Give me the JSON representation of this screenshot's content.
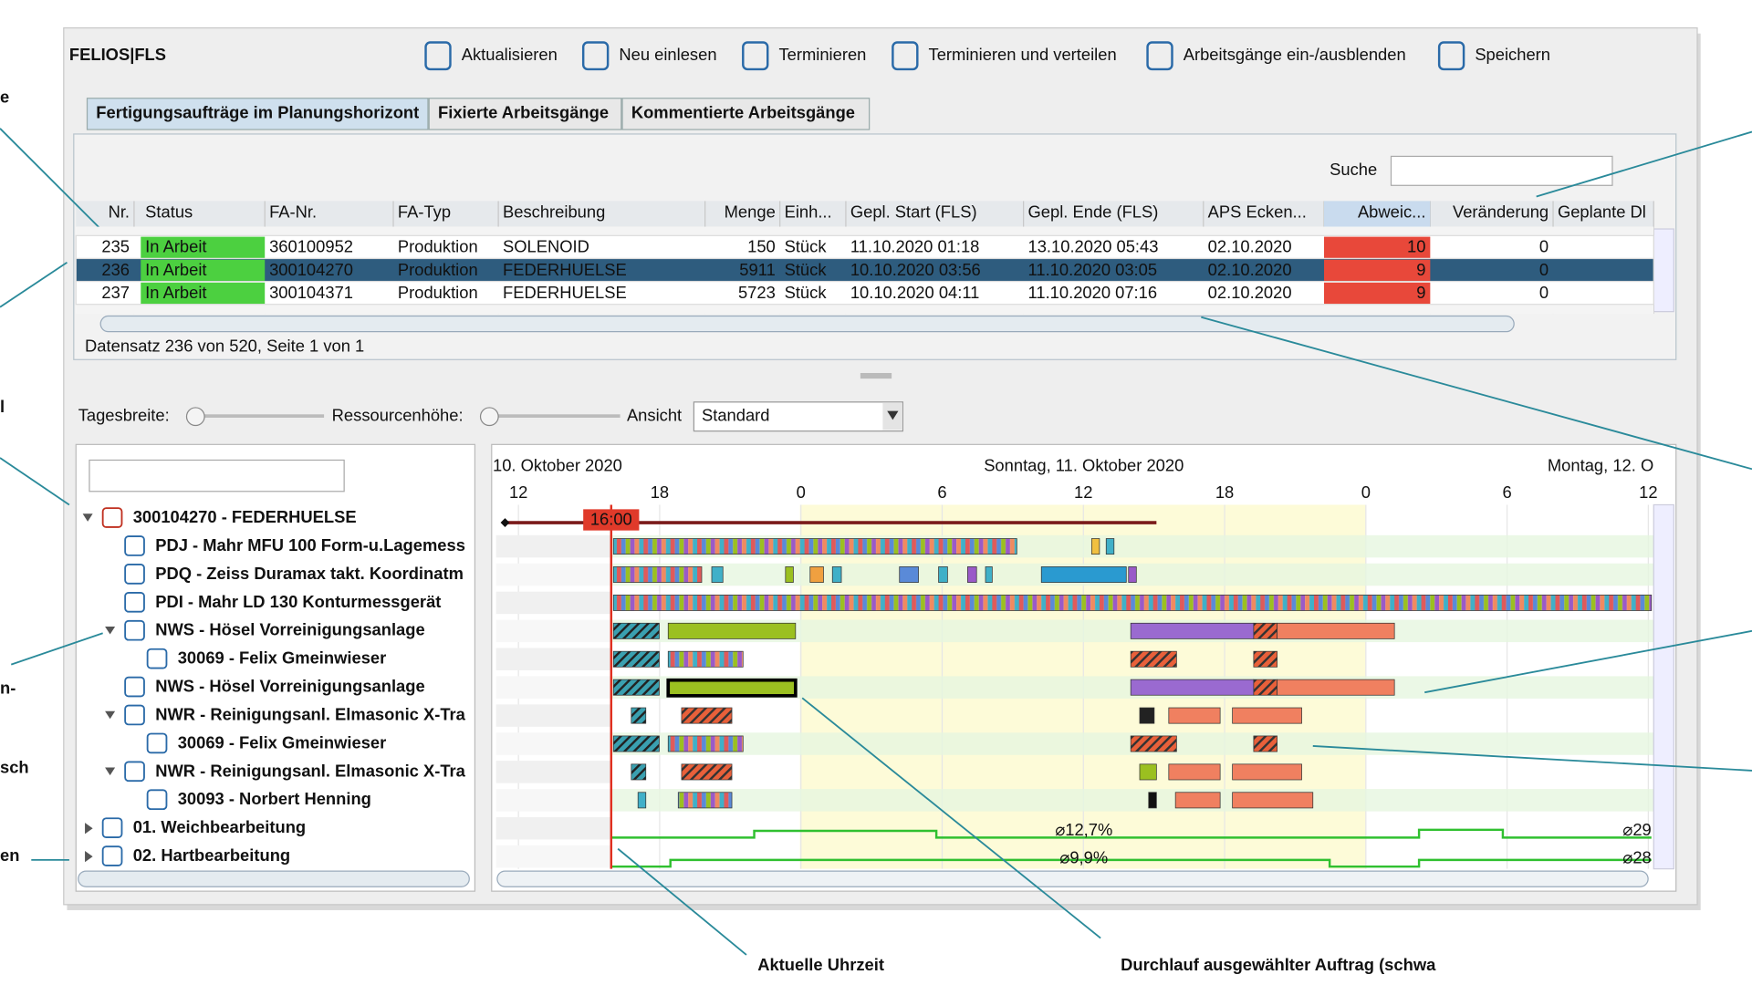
{
  "header": {
    "app_title": "FELIOS|FLS",
    "toolbar": [
      "Aktualisieren",
      "Neu einlesen",
      "Terminieren",
      "Terminieren und verteilen",
      "Arbeitsgänge ein-/ausblenden",
      "Speichern"
    ]
  },
  "tabs": [
    "Fertigungsaufträge im Planungshorizont",
    "Fixierte Arbeitsgänge",
    "Kommentierte Arbeitsgänge"
  ],
  "table": {
    "search_label": "Suche",
    "columns": [
      "Nr.",
      "Status",
      "FA-Nr.",
      "FA-Typ",
      "Beschreibung",
      "Menge",
      "Einh...",
      "Gepl. Start (FLS)",
      "Gepl. Ende (FLS)",
      "APS Ecken...",
      "Abweic...",
      "Veränderung",
      "Geplante Dl"
    ],
    "rows": [
      [
        "235",
        "In Arbeit",
        "360100952",
        "Produktion",
        "SOLENOID",
        "150",
        "Stück",
        "11.10.2020 01:18",
        "13.10.2020 05:43",
        "02.10.2020",
        "10",
        "0"
      ],
      [
        "236",
        "In Arbeit",
        "300104270",
        "Produktion",
        "FEDERHUELSE",
        "5911",
        "Stück",
        "10.10.2020 03:56",
        "11.10.2020 03:05",
        "02.10.2020",
        "9",
        "0"
      ],
      [
        "237",
        "In Arbeit",
        "300104371",
        "Produktion",
        "FEDERHUELSE",
        "5723",
        "Stück",
        "10.10.2020 04:11",
        "11.10.2020 07:16",
        "02.10.2020",
        "9",
        "0"
      ]
    ],
    "status": "Datensatz 236 von 520, Seite 1 von 1"
  },
  "gantt_controls": {
    "day_width_label": "Tagesbreite:",
    "resource_height_label": "Ressourcenhöhe:",
    "view_label": "Ansicht",
    "view_value": "Standard"
  },
  "timeline": {
    "dates": [
      "10. Oktober 2020",
      "Sonntag, 11. Oktober 2020",
      "Montag, 12. O"
    ],
    "hours": [
      "12",
      "18",
      "0",
      "6",
      "12",
      "18",
      "0",
      "6",
      "12"
    ],
    "current_time": "16:00"
  },
  "tree": {
    "nodes": [
      "300104270 - FEDERHUELSE",
      "PDJ - Mahr MFU 100 Form-u.Lagemess",
      "PDQ - Zeiss Duramax takt. Koordinatm",
      "PDI - Mahr LD 130 Konturmessgerät",
      "NWS - Hösel Vorreinigungsanlage",
      "30069 - Felix Gmeinwieser",
      "NWS - Hösel Vorreinigungsanlage",
      "NWR - Reinigungsanl. Elmasonic X-Tra",
      "30069 - Felix Gmeinwieser",
      "NWR - Reinigungsanl. Elmasonic X-Tra",
      "30093 - Norbert Henning",
      "01. Weichbearbeitung",
      "02. Hartbearbeitung"
    ]
  },
  "load_labels": [
    "⌀12,7%",
    "⌀9,9%",
    "⌀29",
    "⌀28"
  ],
  "annotations": {
    "left": [
      "e",
      "l",
      "n-",
      "sch",
      "en"
    ],
    "bottom": [
      "Aktuelle Uhrzeit",
      "Durchlauf ausgewählter Auftrag (schwa"
    ]
  }
}
